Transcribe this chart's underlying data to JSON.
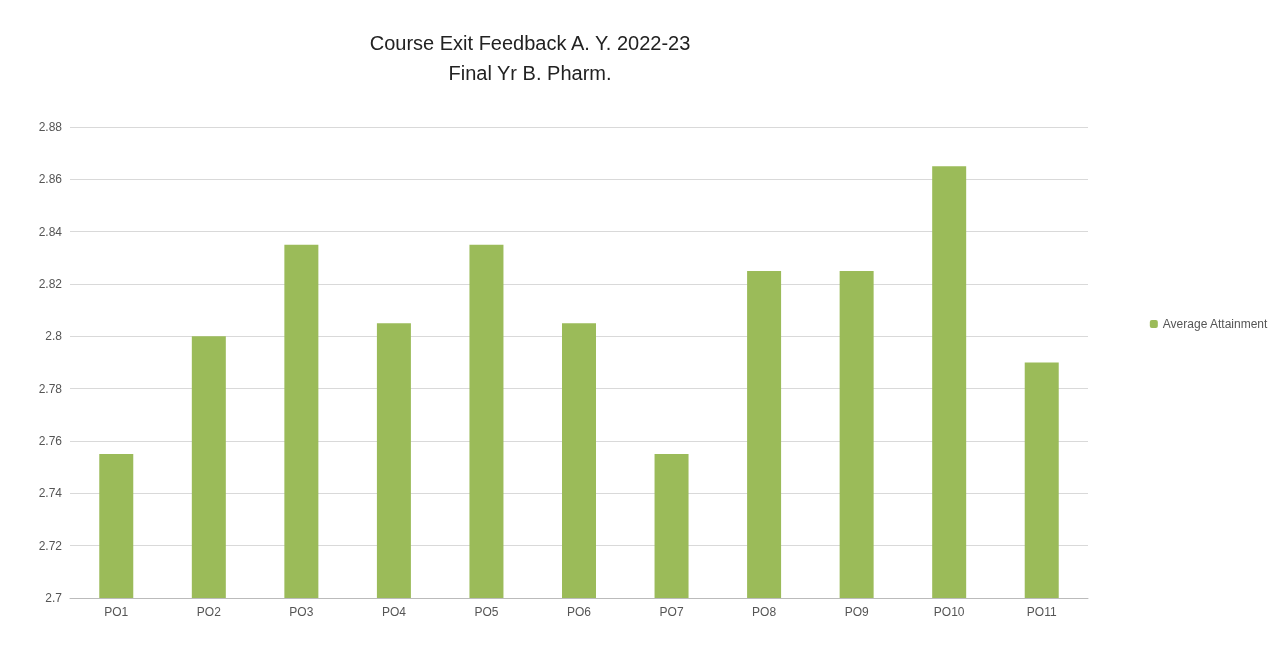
{
  "chart_data": {
    "type": "bar",
    "title": "Course Exit Feedback A. Y. 2022-23",
    "subtitle": "Final Yr B. Pharm.",
    "categories": [
      "PO1",
      "PO2",
      "PO3",
      "PO4",
      "PO5",
      "PO6",
      "PO7",
      "PO8",
      "PO9",
      "PO10",
      "PO11"
    ],
    "series": [
      {
        "name": "Average Attainment",
        "color": "#9bbb59",
        "values": [
          2.755,
          2.8,
          2.835,
          2.805,
          2.835,
          2.805,
          2.755,
          2.825,
          2.825,
          2.865,
          2.79
        ]
      }
    ],
    "ylim": [
      2.7,
      2.88
    ],
    "yticks": [
      2.7,
      2.72,
      2.74,
      2.76,
      2.78,
      2.8,
      2.82,
      2.84,
      2.86,
      2.88
    ],
    "grid": "y",
    "legend": "right"
  }
}
